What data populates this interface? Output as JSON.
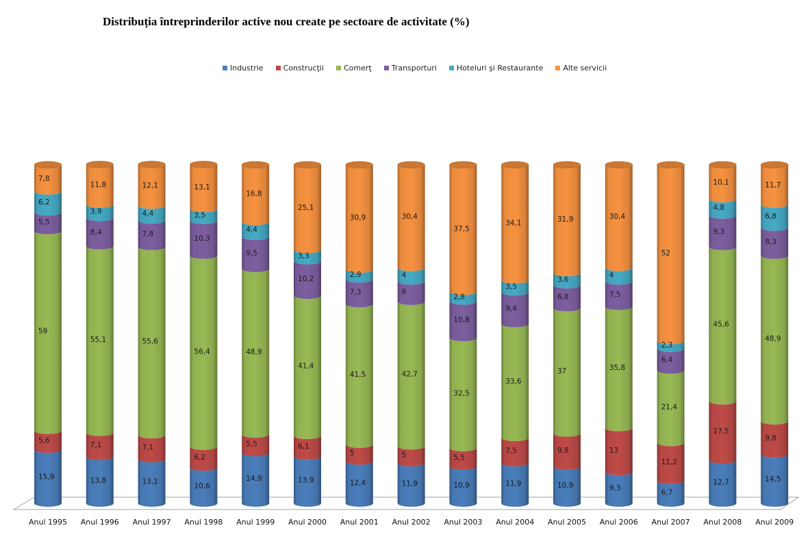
{
  "chart_data": {
    "type": "bar",
    "subtype": "stacked-100-cylinder-3d",
    "title": "Distribuția întreprinderilor active nou create  pe sectoare de activitate (%)",
    "xlabel": "",
    "ylabel": "",
    "ylim": [
      0,
      100
    ],
    "grid": false,
    "legend_position": "top",
    "categories": [
      "Anul 1995",
      "Anul 1996",
      "Anul 1997",
      "Anul 1998",
      "Anul 1999",
      "Anul 2000",
      "Anul 2001",
      "Anul 2002",
      "Anul 2003",
      "Anul 2004",
      "Anul 2005",
      "Anul 2006",
      "Anul 2007",
      "Anul 2008",
      "Anul 2009"
    ],
    "series": [
      {
        "name": "Industrie",
        "color": "#4a7ebb",
        "values": [
          15.9,
          13.8,
          13.1,
          10.6,
          14.9,
          13.9,
          12.4,
          11.9,
          10.9,
          11.9,
          10.9,
          9.3,
          6.7,
          12.7,
          14.5
        ],
        "labels": [
          "15,9",
          "13,8",
          "13,1",
          "10,6",
          "14,9",
          "13,9",
          "12,4",
          "11,9",
          "10,9",
          "11,9",
          "10,9",
          "9,3",
          "6,7",
          "12,7",
          "14,5"
        ]
      },
      {
        "name": "Construcţii",
        "color": "#be4b48",
        "values": [
          5.6,
          7.1,
          7.1,
          6.2,
          5.5,
          6.1,
          5,
          5,
          5.5,
          7.5,
          9.8,
          13,
          11.2,
          17.5,
          9.8
        ],
        "labels": [
          "5,6",
          "7,1",
          "7,1",
          "6,2",
          "5,5",
          "6,1",
          "5",
          "5",
          "5,5",
          "7,5",
          "9,8",
          "13",
          "11,2",
          "17,5",
          "9,8"
        ]
      },
      {
        "name": "Comerţ",
        "color": "#98b954",
        "values": [
          59,
          55.1,
          55.6,
          56.4,
          48.9,
          41.4,
          41.5,
          42.7,
          32.5,
          33.6,
          37,
          35.8,
          21.4,
          45.6,
          48.9
        ],
        "labels": [
          "59",
          "55,1",
          "55,6",
          "56,4",
          "48,9",
          "41,4",
          "41,5",
          "42,7",
          "32,5",
          "33,6",
          "37",
          "35,8",
          "21,4",
          "45,6",
          "48,9"
        ]
      },
      {
        "name": "Transporturi",
        "color": "#7d5fa0",
        "values": [
          5.5,
          8.4,
          7.8,
          10.3,
          9.5,
          10.2,
          7.3,
          6,
          10.8,
          9.4,
          6.8,
          7.5,
          6.4,
          9.3,
          8.3
        ],
        "labels": [
          "5,5",
          "8,4",
          "7,8",
          "10,3",
          "9,5",
          "10,2",
          "7,3",
          "6",
          "10,8",
          "9,4",
          "6,8",
          "7,5",
          "6,4",
          "9,3",
          "8,3"
        ]
      },
      {
        "name": "Hoteluri şi Restaurante",
        "color": "#46aac5",
        "values": [
          6.2,
          3.9,
          4.4,
          3.5,
          4.4,
          3.3,
          2.9,
          4,
          2.8,
          3.5,
          3.6,
          4,
          2.3,
          4.8,
          6.8
        ],
        "labels": [
          "6,2",
          "3,9",
          "4,4",
          "3,5",
          "4,4",
          "3,3",
          "2,9",
          "4",
          "2,8",
          "3,5",
          "3,6",
          "4",
          "2,3",
          "4,8",
          "6,8"
        ]
      },
      {
        "name": "Alte servicii",
        "color": "#f69240",
        "values": [
          7.8,
          11.8,
          12.1,
          13.1,
          16.8,
          25.1,
          30.9,
          30.4,
          37.5,
          34.1,
          31.9,
          30.4,
          52,
          10.1,
          11.7
        ],
        "labels": [
          "7,8",
          "11,8",
          "12,1",
          "13,1",
          "16,8",
          "25,1",
          "30,9",
          "30,4",
          "37,5",
          "34,1",
          "31,9",
          "30,4",
          "52",
          "10,1",
          "11,7"
        ]
      }
    ]
  }
}
